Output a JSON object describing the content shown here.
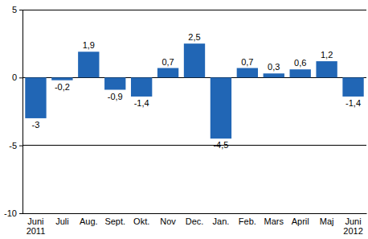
{
  "chart_data": {
    "type": "bar",
    "categories": [
      "Juni 2011",
      "Juli",
      "Aug.",
      "Sept.",
      "Okt.",
      "Nov",
      "Dec.",
      "Jan.",
      "Feb.",
      "Mars",
      "April",
      "Maj",
      "Juni 2012"
    ],
    "values": [
      -3,
      -0.2,
      1.9,
      -0.9,
      -1.4,
      0.7,
      2.5,
      -4.5,
      0.7,
      0.3,
      0.6,
      1.2,
      -1.4
    ],
    "value_labels": [
      "-3",
      "-0,2",
      "1,9",
      "-0,9",
      "-1,4",
      "0,7",
      "2,5",
      "-4,5",
      "0,7",
      "0,3",
      "0,6",
      "1,2",
      "-1,4"
    ],
    "color": "#2166b5",
    "ylim": [
      -10,
      5
    ],
    "yticks": [
      -10,
      -5,
      0,
      5
    ],
    "grid": true,
    "data_labels": true
  }
}
